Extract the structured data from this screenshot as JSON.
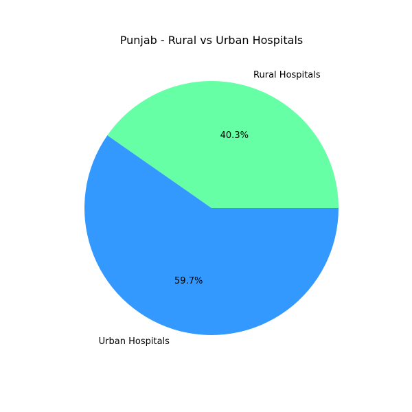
{
  "chart_data": {
    "type": "pie",
    "title": "Punjab - Rural vs Urban Hospitals",
    "slices": [
      {
        "label": "Rural Hospitals",
        "value": 40.3,
        "pct_text": "40.3%",
        "color": "#66ffa6"
      },
      {
        "label": "Urban Hospitals",
        "value": 59.7,
        "pct_text": "59.7%",
        "color": "#3399ff"
      }
    ],
    "start_angle_deg": 0,
    "direction": "counterclockwise",
    "legend": "none"
  }
}
